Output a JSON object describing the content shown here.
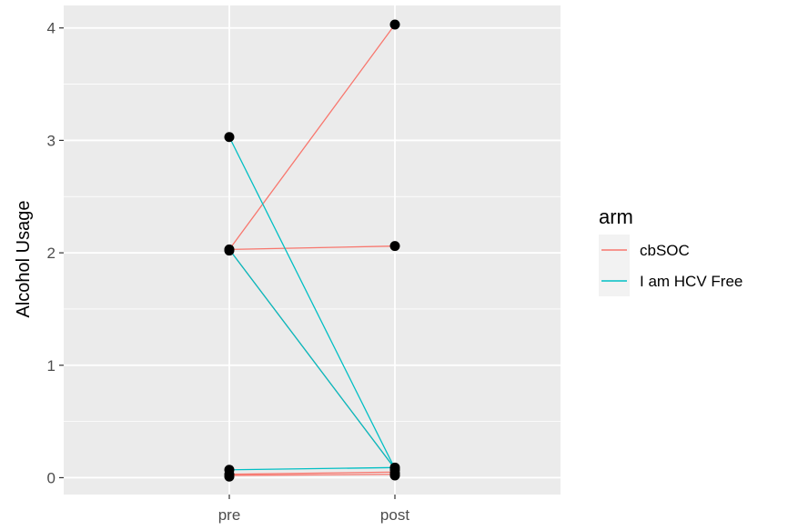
{
  "chart_data": {
    "type": "line",
    "title": "",
    "xlabel": "",
    "ylabel": "Alcohol Usage",
    "categories": [
      "pre",
      "post"
    ],
    "ylim": [
      -0.15,
      4.2
    ],
    "yticks": [
      0,
      1,
      2,
      3,
      4
    ],
    "grid": true,
    "legend": {
      "title": "arm",
      "placement": "right",
      "entries": [
        {
          "label": "cbSOC",
          "color": "#F8766D"
        },
        {
          "label": "I am HCV Free",
          "color": "#00BFC4"
        }
      ]
    },
    "series": [
      {
        "name": "cbSOC",
        "color": "#F8766D",
        "values": [
          2.03,
          4.03
        ]
      },
      {
        "name": "cbSOC",
        "color": "#F8766D",
        "values": [
          2.03,
          2.06
        ]
      },
      {
        "name": "cbSOC",
        "color": "#F8766D",
        "values": [
          2.03,
          0.08
        ]
      },
      {
        "name": "cbSOC",
        "color": "#F8766D",
        "values": [
          0.03,
          0.05
        ]
      },
      {
        "name": "cbSOC",
        "color": "#F8766D",
        "values": [
          0.02,
          0.03
        ]
      },
      {
        "name": "I am HCV Free",
        "color": "#00BFC4",
        "values": [
          3.03,
          0.08
        ]
      },
      {
        "name": "I am HCV Free",
        "color": "#00BFC4",
        "values": [
          2.03,
          0.08
        ]
      },
      {
        "name": "I am HCV Free",
        "color": "#00BFC4",
        "values": [
          0.07,
          0.09
        ]
      }
    ],
    "points": {
      "pre": [
        3.03,
        2.03,
        2.02,
        0.07,
        0.03,
        0.01
      ],
      "post": [
        4.03,
        2.06,
        0.09,
        0.07,
        0.04,
        0.02
      ]
    }
  }
}
